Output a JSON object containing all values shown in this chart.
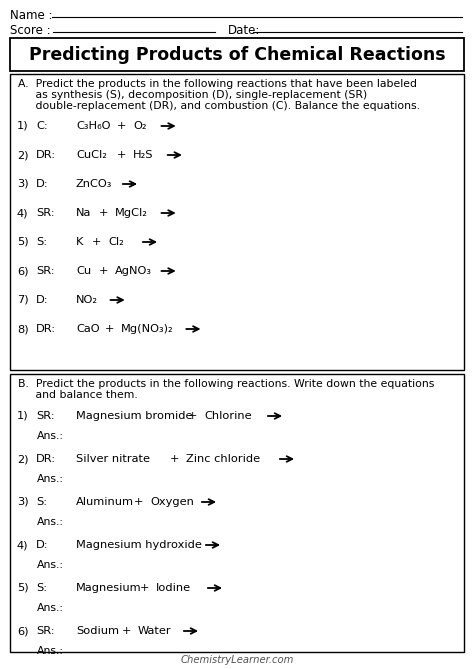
{
  "bg_color": "#ffffff",
  "title": "Predicting Products of Chemical Reactions",
  "section_a_header_1": "A.  Predict the products in the following reactions that have been labeled",
  "section_a_header_2": "     as synthesis (S), decomposition (D), single-replacement (SR)",
  "section_a_header_3": "     double-replacement (DR), and combustion (C). Balance the equations.",
  "section_a_items": [
    {
      "num": "1)",
      "type": "C:",
      "parts": [
        "C₃H₆O",
        "+",
        "O₂",
        "→"
      ]
    },
    {
      "num": "2)",
      "type": "DR:",
      "parts": [
        "CuCl₂",
        "+",
        "H₂S",
        "→"
      ]
    },
    {
      "num": "3)",
      "type": "D:",
      "parts": [
        "ZnCO₃",
        "→"
      ]
    },
    {
      "num": "4)",
      "type": "SR:",
      "parts": [
        "Na",
        "+",
        "MgCl₂",
        "→"
      ]
    },
    {
      "num": "5)",
      "type": "S:",
      "parts": [
        "K",
        "+",
        "Cl₂",
        "→"
      ]
    },
    {
      "num": "6)",
      "type": "SR:",
      "parts": [
        "Cu",
        "+",
        "AgNO₃",
        "→"
      ]
    },
    {
      "num": "7)",
      "type": "D:",
      "parts": [
        "NO₂",
        "→"
      ]
    },
    {
      "num": "8)",
      "type": "DR:",
      "parts": [
        "CaO",
        "+",
        "Mg(NO₃)₂",
        "→"
      ]
    }
  ],
  "section_b_header_1": "B.  Predict the products in the following reactions. Write down the equations",
  "section_b_header_2": "     and balance them.",
  "section_b_items": [
    {
      "num": "1)",
      "type": "SR:",
      "parts": [
        "Magnesium bromide",
        "+",
        "Chlorine",
        "→"
      ]
    },
    {
      "num": "2)",
      "type": "DR:",
      "parts": [
        "Silver nitrate",
        "+",
        "Zinc chloride",
        "→"
      ]
    },
    {
      "num": "3)",
      "type": "S:",
      "parts": [
        "Aluminum",
        "+",
        "Oxygen",
        "→"
      ]
    },
    {
      "num": "4)",
      "type": "D:",
      "parts": [
        "Magnesium hydroxide",
        "→"
      ]
    },
    {
      "num": "5)",
      "type": "S:",
      "parts": [
        "Magnesium",
        "+",
        "Iodine",
        "→"
      ]
    },
    {
      "num": "6)",
      "type": "SR:",
      "parts": [
        "Sodium",
        "+",
        "Water",
        "→"
      ]
    }
  ],
  "footer": "ChemistryLearner.com"
}
